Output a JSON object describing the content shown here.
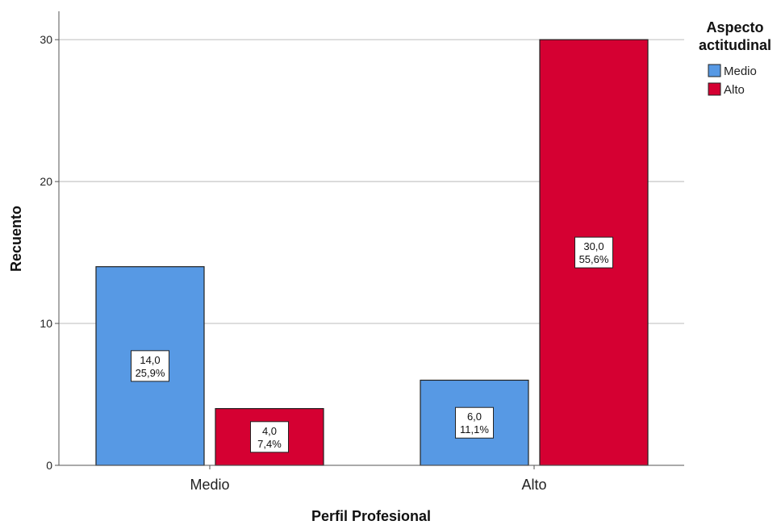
{
  "chart_data": {
    "type": "bar",
    "categories": [
      "Medio",
      "Alto"
    ],
    "series": [
      {
        "name": "Medio",
        "color": "#5799e4",
        "values": [
          14,
          6
        ],
        "labels": [
          [
            "14,0",
            "25,9%"
          ],
          [
            "6,0",
            "11,1%"
          ]
        ]
      },
      {
        "name": "Alto",
        "color": "#d50032",
        "values": [
          4,
          30
        ],
        "labels": [
          [
            "4,0",
            "7,4%"
          ],
          [
            "30,0",
            "55,6%"
          ]
        ]
      }
    ],
    "xlabel": "Perfil Profesional",
    "ylabel": "Recuento",
    "ylim": [
      0,
      32
    ],
    "yticks": [
      0,
      10,
      20,
      30
    ],
    "ytick_labels": [
      "0",
      "10",
      "20",
      "30"
    ],
    "grid": true,
    "legend": {
      "title_lines": [
        "Aspecto",
        "actitudinal"
      ],
      "position": "top-right"
    }
  }
}
